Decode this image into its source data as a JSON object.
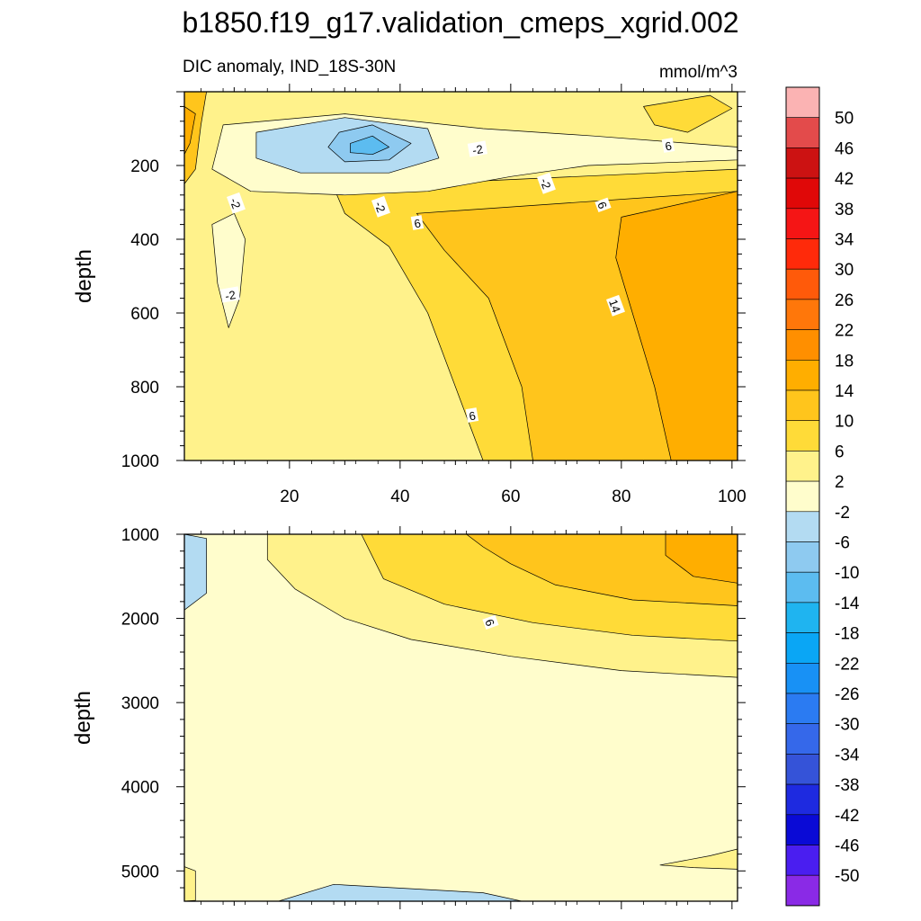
{
  "title": "b1850.f19_g17.validation_cmeps_xgrid.002",
  "chart_data": [
    {
      "type": "contour",
      "subtitle_left": "DIC anomaly, IND_18S-30N",
      "subtitle_right": "mmol/m^3",
      "ylabel": "depth",
      "xlim": [
        1,
        101
      ],
      "ylim": [
        1000,
        0
      ],
      "xticks": [
        "20",
        "40",
        "60",
        "80",
        "100"
      ],
      "yticks": [
        "200",
        "400",
        "600",
        "800",
        "1000"
      ],
      "contour_labels": [
        "-2",
        "-2",
        "-2",
        "-2",
        "-2",
        "6",
        "6",
        "6",
        "14",
        "6"
      ],
      "regions": [
        {
          "level": 2,
          "points": [
            [
              1,
              0
            ],
            [
              101,
              0
            ],
            [
              101,
              1000
            ],
            [
              1,
              1000
            ]
          ]
        },
        {
          "level": 6,
          "points": [
            [
              28,
              260
            ],
            [
              101,
              210
            ],
            [
              101,
              1000
            ],
            [
              55,
              1000
            ],
            [
              52,
              880
            ],
            [
              45,
              600
            ],
            [
              38,
              420
            ],
            [
              30,
              330
            ]
          ]
        },
        {
          "level": 10,
          "points": [
            [
              43,
              330
            ],
            [
              101,
              270
            ],
            [
              101,
              1000
            ],
            [
              64,
              1000
            ],
            [
              62,
              800
            ],
            [
              56,
              560
            ],
            [
              48,
              430
            ]
          ]
        },
        {
          "level": 14,
          "points": [
            [
              80,
              340
            ],
            [
              101,
              270
            ],
            [
              101,
              1000
            ],
            [
              89,
              1000
            ],
            [
              86,
              800
            ],
            [
              82,
              600
            ],
            [
              79,
              450
            ]
          ]
        },
        {
          "level": -2,
          "points": [
            [
              8,
              90
            ],
            [
              30,
              60
            ],
            [
              55,
              100
            ],
            [
              75,
              120
            ],
            [
              101,
              150
            ],
            [
              101,
              185
            ],
            [
              74,
              200
            ],
            [
              60,
              230
            ],
            [
              45,
              270
            ],
            [
              30,
              280
            ],
            [
              13,
              270
            ],
            [
              6,
              210
            ]
          ]
        },
        {
          "level": -6,
          "points": [
            [
              14,
              110
            ],
            [
              30,
              70
            ],
            [
              45,
              100
            ],
            [
              47,
              180
            ],
            [
              38,
              220
            ],
            [
              22,
              220
            ],
            [
              14,
              180
            ]
          ]
        },
        {
          "level": -10,
          "points": [
            [
              29,
              110
            ],
            [
              35,
              90
            ],
            [
              42,
              140
            ],
            [
              38,
              185
            ],
            [
              30,
              190
            ],
            [
              27,
              150
            ]
          ]
        },
        {
          "level": -14,
          "points": [
            [
              31,
              140
            ],
            [
              35,
              120
            ],
            [
              38,
              150
            ],
            [
              35,
              170
            ],
            [
              31,
              165
            ]
          ]
        },
        {
          "level": -2,
          "points": [
            [
              6,
              360
            ],
            [
              10,
              330
            ],
            [
              12,
              400
            ],
            [
              11,
              560
            ],
            [
              9,
              640
            ],
            [
              7,
              520
            ]
          ]
        },
        {
          "level": 10,
          "points": [
            [
              1,
              0
            ],
            [
              5,
              0
            ],
            [
              4,
              90
            ],
            [
              3,
              210
            ],
            [
              1,
              250
            ]
          ]
        },
        {
          "level": 14,
          "points": [
            [
              1,
              40
            ],
            [
              3,
              60
            ],
            [
              2,
              140
            ],
            [
              1,
              170
            ]
          ]
        },
        {
          "level": 6,
          "points": [
            [
              84,
              40
            ],
            [
              96,
              10
            ],
            [
              100,
              45
            ],
            [
              92,
              110
            ],
            [
              86,
              90
            ]
          ]
        }
      ]
    },
    {
      "type": "contour",
      "ylabel": "depth",
      "xlim": [
        1,
        101
      ],
      "ylim": [
        5360,
        1000
      ],
      "xticks": [
        "20",
        "40",
        "60",
        "80",
        "100"
      ],
      "yticks": [
        "1000",
        "2000",
        "3000",
        "4000",
        "5000"
      ],
      "contour_labels": [
        "6"
      ],
      "regions": [
        {
          "level": -2,
          "points": [
            [
              1,
              1000
            ],
            [
              101,
              1000
            ],
            [
              101,
              5360
            ],
            [
              1,
              5360
            ]
          ]
        },
        {
          "level": 2,
          "points": [
            [
              16,
              1000
            ],
            [
              101,
              1000
            ],
            [
              101,
              2700
            ],
            [
              80,
              2620
            ],
            [
              60,
              2450
            ],
            [
              42,
              2250
            ],
            [
              30,
              2000
            ],
            [
              21,
              1650
            ],
            [
              16,
              1300
            ]
          ]
        },
        {
          "level": 6,
          "points": [
            [
              33,
              1000
            ],
            [
              101,
              1000
            ],
            [
              101,
              2270
            ],
            [
              82,
              2200
            ],
            [
              64,
              2050
            ],
            [
              48,
              1830
            ],
            [
              37,
              1530
            ]
          ]
        },
        {
          "level": 10,
          "points": [
            [
              52,
              1000
            ],
            [
              101,
              1000
            ],
            [
              101,
              1850
            ],
            [
              82,
              1780
            ],
            [
              68,
              1600
            ],
            [
              60,
              1350
            ],
            [
              55,
              1150
            ]
          ]
        },
        {
          "level": 14,
          "points": [
            [
              88,
              1000
            ],
            [
              101,
              1000
            ],
            [
              101,
              1580
            ],
            [
              93,
              1500
            ],
            [
              88,
              1250
            ]
          ]
        },
        {
          "level": -6,
          "points": [
            [
              1,
              1000
            ],
            [
              5,
              1050
            ],
            [
              5,
              1700
            ],
            [
              1,
              1900
            ]
          ]
        },
        {
          "level": -6,
          "points": [
            [
              18,
              5360
            ],
            [
              28,
              5160
            ],
            [
              55,
              5260
            ],
            [
              62,
              5360
            ]
          ]
        },
        {
          "level": 2,
          "points": [
            [
              1,
              4950
            ],
            [
              3,
              5000
            ],
            [
              3,
              5350
            ],
            [
              1,
              5360
            ]
          ]
        },
        {
          "level": 2,
          "points": [
            [
              87,
              4930
            ],
            [
              96,
              4820
            ],
            [
              101,
              4740
            ],
            [
              101,
              4980
            ],
            [
              93,
              4960
            ]
          ]
        }
      ]
    }
  ],
  "colorbar": {
    "levels": [
      "50",
      "46",
      "42",
      "38",
      "34",
      "30",
      "26",
      "22",
      "18",
      "14",
      "10",
      "6",
      "2",
      "-2",
      "-6",
      "-10",
      "-14",
      "-18",
      "-22",
      "-26",
      "-30",
      "-34",
      "-38",
      "-42",
      "-46",
      "-50"
    ],
    "colors": [
      "#fbb3b3",
      "#e34b4b",
      "#cc1212",
      "#e00808",
      "#f51515",
      "#ff2a0a",
      "#ff5a0a",
      "#ff770a",
      "#ff8f00",
      "#ffae00",
      "#ffc51c",
      "#ffdb38",
      "#fff28b",
      "#fffdcc",
      "#b3dbf2",
      "#8ecaf0",
      "#5cbcf0",
      "#1fb4f0",
      "#0aa6f5",
      "#1891f5",
      "#2b7bf2",
      "#3568ea",
      "#3553d8",
      "#1e2ae0",
      "#0a0ad6",
      "#4a1ef0",
      "#8a2ae6"
    ],
    "level_colors": {
      "-6": "#b3dbf2",
      "-10": "#8ecaf0",
      "-14": "#5cbcf0",
      "-2": "#fffdcc",
      "2": "#fff28b",
      "6": "#ffdb38",
      "10": "#ffc51c",
      "14": "#ffae00"
    }
  }
}
